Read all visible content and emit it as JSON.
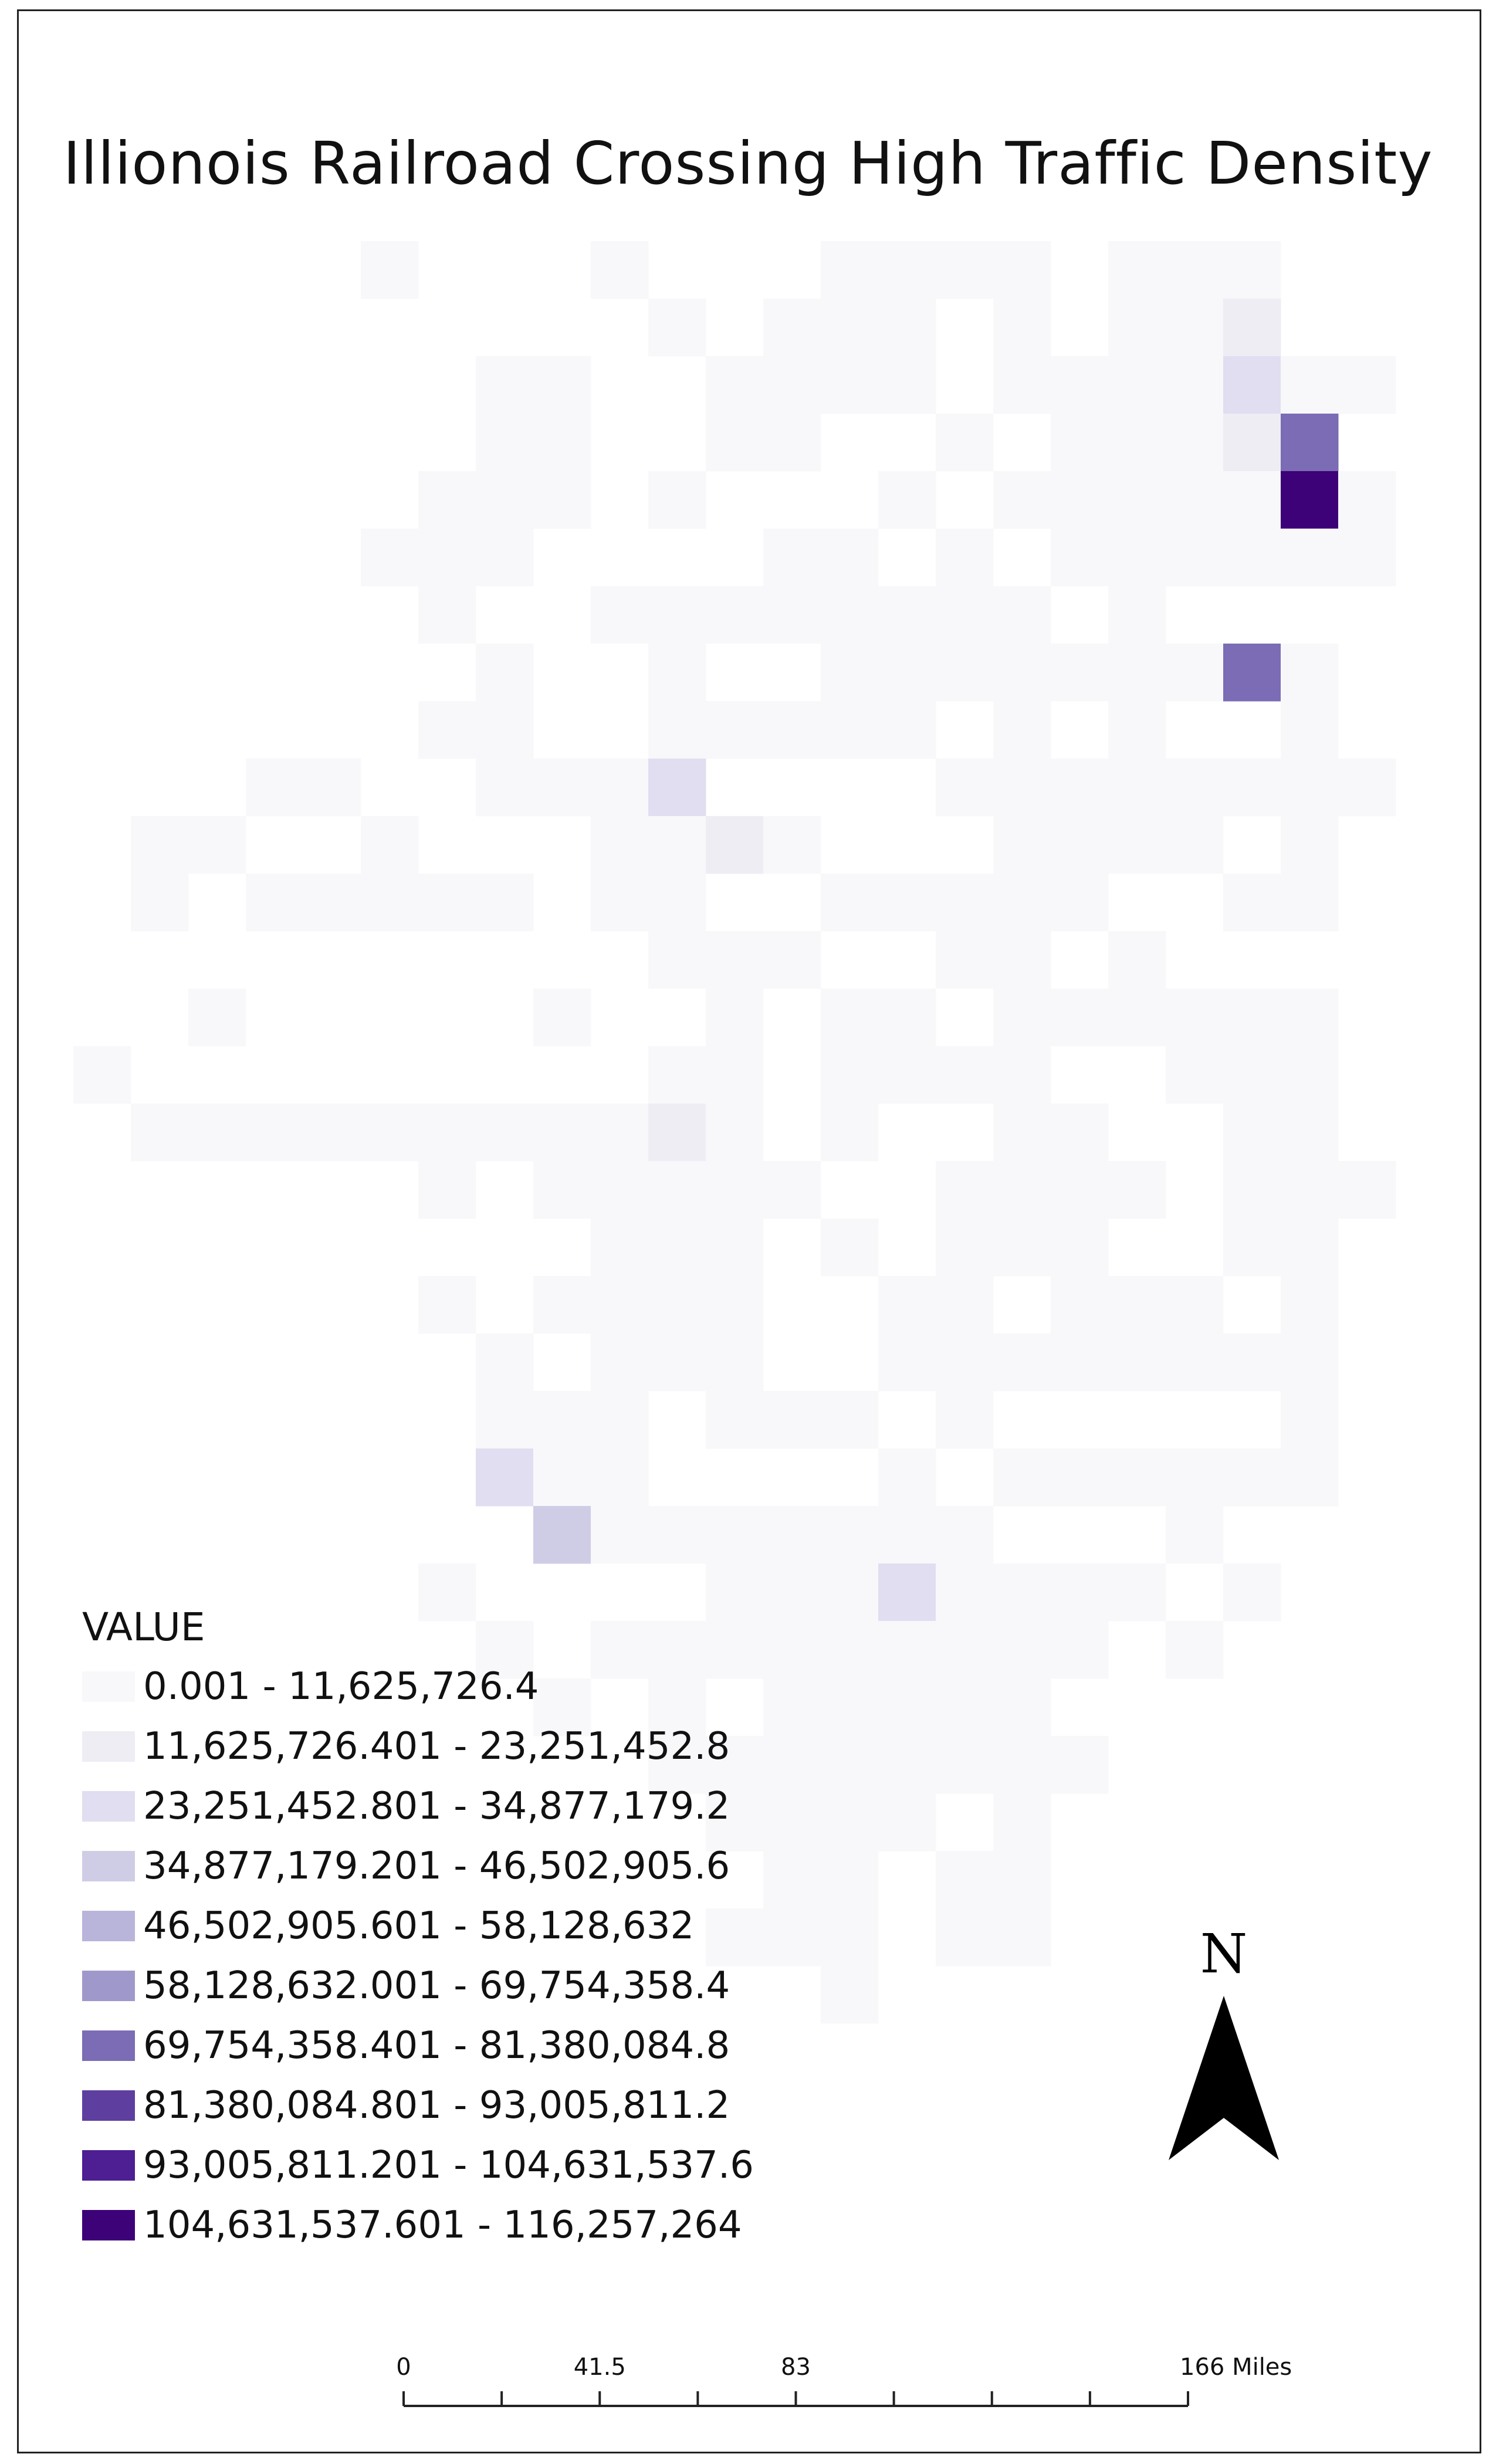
{
  "title": "Illionois Railroad Crossing High Traffic Density",
  "map": {
    "grid_cols": 23,
    "grid_rows": 31,
    "cells": [
      [
        5,
        0,
        0
      ],
      [
        9,
        0,
        0
      ],
      [
        13,
        0,
        0
      ],
      [
        14,
        0,
        0
      ],
      [
        15,
        0,
        0
      ],
      [
        16,
        0,
        0
      ],
      [
        18,
        0,
        0
      ],
      [
        19,
        0,
        0
      ],
      [
        20,
        0,
        0
      ],
      [
        10,
        1,
        0
      ],
      [
        12,
        1,
        0
      ],
      [
        13,
        1,
        0
      ],
      [
        14,
        1,
        0
      ],
      [
        16,
        1,
        0
      ],
      [
        18,
        1,
        0
      ],
      [
        19,
        1,
        0
      ],
      [
        20,
        1,
        1
      ],
      [
        7,
        2,
        0
      ],
      [
        8,
        2,
        0
      ],
      [
        11,
        2,
        0
      ],
      [
        12,
        2,
        0
      ],
      [
        13,
        2,
        0
      ],
      [
        14,
        2,
        0
      ],
      [
        16,
        2,
        0
      ],
      [
        17,
        2,
        0
      ],
      [
        18,
        2,
        0
      ],
      [
        19,
        2,
        0
      ],
      [
        20,
        2,
        2
      ],
      [
        21,
        2,
        0
      ],
      [
        22,
        2,
        0
      ],
      [
        7,
        3,
        0
      ],
      [
        8,
        3,
        0
      ],
      [
        11,
        3,
        0
      ],
      [
        12,
        3,
        0
      ],
      [
        15,
        3,
        0
      ],
      [
        17,
        3,
        0
      ],
      [
        18,
        3,
        0
      ],
      [
        19,
        3,
        0
      ],
      [
        20,
        3,
        1
      ],
      [
        21,
        3,
        6
      ],
      [
        6,
        4,
        0
      ],
      [
        7,
        4,
        0
      ],
      [
        8,
        4,
        0
      ],
      [
        10,
        4,
        0
      ],
      [
        14,
        4,
        0
      ],
      [
        16,
        4,
        0
      ],
      [
        17,
        4,
        0
      ],
      [
        18,
        4,
        0
      ],
      [
        19,
        4,
        0
      ],
      [
        20,
        4,
        0
      ],
      [
        21,
        4,
        9
      ],
      [
        22,
        4,
        0
      ],
      [
        5,
        5,
        0
      ],
      [
        6,
        5,
        0
      ],
      [
        7,
        5,
        0
      ],
      [
        12,
        5,
        0
      ],
      [
        13,
        5,
        0
      ],
      [
        15,
        5,
        0
      ],
      [
        17,
        5,
        0
      ],
      [
        18,
        5,
        0
      ],
      [
        19,
        5,
        0
      ],
      [
        20,
        5,
        0
      ],
      [
        21,
        5,
        0
      ],
      [
        22,
        5,
        0
      ],
      [
        6,
        6,
        0
      ],
      [
        9,
        6,
        0
      ],
      [
        10,
        6,
        0
      ],
      [
        11,
        6,
        0
      ],
      [
        12,
        6,
        0
      ],
      [
        13,
        6,
        0
      ],
      [
        14,
        6,
        0
      ],
      [
        15,
        6,
        0
      ],
      [
        16,
        6,
        0
      ],
      [
        18,
        6,
        0
      ],
      [
        7,
        7,
        0
      ],
      [
        10,
        7,
        0
      ],
      [
        13,
        7,
        0
      ],
      [
        14,
        7,
        0
      ],
      [
        15,
        7,
        0
      ],
      [
        16,
        7,
        0
      ],
      [
        17,
        7,
        0
      ],
      [
        18,
        7,
        0
      ],
      [
        19,
        7,
        0
      ],
      [
        20,
        7,
        6
      ],
      [
        21,
        7,
        0
      ],
      [
        6,
        8,
        0
      ],
      [
        7,
        8,
        0
      ],
      [
        10,
        8,
        0
      ],
      [
        11,
        8,
        0
      ],
      [
        12,
        8,
        0
      ],
      [
        13,
        8,
        0
      ],
      [
        14,
        8,
        0
      ],
      [
        16,
        8,
        0
      ],
      [
        18,
        8,
        0
      ],
      [
        21,
        8,
        0
      ],
      [
        3,
        9,
        0
      ],
      [
        4,
        9,
        0
      ],
      [
        7,
        9,
        0
      ],
      [
        8,
        9,
        0
      ],
      [
        9,
        9,
        0
      ],
      [
        10,
        9,
        2
      ],
      [
        15,
        9,
        0
      ],
      [
        16,
        9,
        0
      ],
      [
        17,
        9,
        0
      ],
      [
        18,
        9,
        0
      ],
      [
        19,
        9,
        0
      ],
      [
        20,
        9,
        0
      ],
      [
        21,
        9,
        0
      ],
      [
        22,
        9,
        0
      ],
      [
        1,
        10,
        0
      ],
      [
        2,
        10,
        0
      ],
      [
        5,
        10,
        0
      ],
      [
        9,
        10,
        0
      ],
      [
        10,
        10,
        0
      ],
      [
        11,
        10,
        1
      ],
      [
        12,
        10,
        0
      ],
      [
        16,
        10,
        0
      ],
      [
        17,
        10,
        0
      ],
      [
        18,
        10,
        0
      ],
      [
        19,
        10,
        0
      ],
      [
        21,
        10,
        0
      ],
      [
        1,
        11,
        0
      ],
      [
        3,
        11,
        0
      ],
      [
        4,
        11,
        0
      ],
      [
        5,
        11,
        0
      ],
      [
        6,
        11,
        0
      ],
      [
        7,
        11,
        0
      ],
      [
        9,
        11,
        0
      ],
      [
        10,
        11,
        0
      ],
      [
        13,
        11,
        0
      ],
      [
        14,
        11,
        0
      ],
      [
        15,
        11,
        0
      ],
      [
        16,
        11,
        0
      ],
      [
        17,
        11,
        0
      ],
      [
        20,
        11,
        0
      ],
      [
        21,
        11,
        0
      ],
      [
        10,
        12,
        0
      ],
      [
        11,
        12,
        0
      ],
      [
        12,
        12,
        0
      ],
      [
        15,
        12,
        0
      ],
      [
        16,
        12,
        0
      ],
      [
        18,
        12,
        0
      ],
      [
        2,
        13,
        0
      ],
      [
        8,
        13,
        0
      ],
      [
        11,
        13,
        0
      ],
      [
        13,
        13,
        0
      ],
      [
        14,
        13,
        0
      ],
      [
        16,
        13,
        0
      ],
      [
        17,
        13,
        0
      ],
      [
        18,
        13,
        0
      ],
      [
        19,
        13,
        0
      ],
      [
        20,
        13,
        0
      ],
      [
        21,
        13,
        0
      ],
      [
        0,
        14,
        0
      ],
      [
        10,
        14,
        0
      ],
      [
        11,
        14,
        0
      ],
      [
        13,
        14,
        0
      ],
      [
        14,
        14,
        0
      ],
      [
        15,
        14,
        0
      ],
      [
        16,
        14,
        0
      ],
      [
        19,
        14,
        0
      ],
      [
        20,
        14,
        0
      ],
      [
        21,
        14,
        0
      ],
      [
        1,
        15,
        0
      ],
      [
        2,
        15,
        0
      ],
      [
        3,
        15,
        0
      ],
      [
        4,
        15,
        0
      ],
      [
        5,
        15,
        0
      ],
      [
        6,
        15,
        0
      ],
      [
        7,
        15,
        0
      ],
      [
        8,
        15,
        0
      ],
      [
        9,
        15,
        0
      ],
      [
        10,
        15,
        1
      ],
      [
        11,
        15,
        0
      ],
      [
        13,
        15,
        0
      ],
      [
        16,
        15,
        0
      ],
      [
        17,
        15,
        0
      ],
      [
        20,
        15,
        0
      ],
      [
        21,
        15,
        0
      ],
      [
        6,
        16,
        0
      ],
      [
        8,
        16,
        0
      ],
      [
        9,
        16,
        0
      ],
      [
        10,
        16,
        0
      ],
      [
        11,
        16,
        0
      ],
      [
        12,
        16,
        0
      ],
      [
        15,
        16,
        0
      ],
      [
        16,
        16,
        0
      ],
      [
        17,
        16,
        0
      ],
      [
        18,
        16,
        0
      ],
      [
        20,
        16,
        0
      ],
      [
        21,
        16,
        0
      ],
      [
        22,
        16,
        0
      ],
      [
        9,
        17,
        0
      ],
      [
        10,
        17,
        0
      ],
      [
        11,
        17,
        0
      ],
      [
        13,
        17,
        0
      ],
      [
        15,
        17,
        0
      ],
      [
        16,
        17,
        0
      ],
      [
        17,
        17,
        0
      ],
      [
        20,
        17,
        0
      ],
      [
        21,
        17,
        0
      ],
      [
        6,
        18,
        0
      ],
      [
        8,
        18,
        0
      ],
      [
        9,
        18,
        0
      ],
      [
        10,
        18,
        0
      ],
      [
        11,
        18,
        0
      ],
      [
        14,
        18,
        0
      ],
      [
        15,
        18,
        0
      ],
      [
        17,
        18,
        0
      ],
      [
        18,
        18,
        0
      ],
      [
        19,
        18,
        0
      ],
      [
        21,
        18,
        0
      ],
      [
        7,
        19,
        0
      ],
      [
        9,
        19,
        0
      ],
      [
        10,
        19,
        0
      ],
      [
        11,
        19,
        0
      ],
      [
        14,
        19,
        0
      ],
      [
        15,
        19,
        0
      ],
      [
        16,
        19,
        0
      ],
      [
        17,
        19,
        0
      ],
      [
        18,
        19,
        0
      ],
      [
        19,
        19,
        0
      ],
      [
        20,
        19,
        0
      ],
      [
        21,
        19,
        0
      ],
      [
        7,
        20,
        0
      ],
      [
        8,
        20,
        0
      ],
      [
        9,
        20,
        0
      ],
      [
        11,
        20,
        0
      ],
      [
        12,
        20,
        0
      ],
      [
        13,
        20,
        0
      ],
      [
        15,
        20,
        0
      ],
      [
        21,
        20,
        0
      ],
      [
        7,
        21,
        2
      ],
      [
        8,
        21,
        0
      ],
      [
        9,
        21,
        0
      ],
      [
        14,
        21,
        0
      ],
      [
        16,
        21,
        0
      ],
      [
        17,
        21,
        0
      ],
      [
        18,
        21,
        0
      ],
      [
        19,
        21,
        0
      ],
      [
        20,
        21,
        0
      ],
      [
        21,
        21,
        0
      ],
      [
        8,
        22,
        3
      ],
      [
        9,
        22,
        0
      ],
      [
        10,
        22,
        0
      ],
      [
        11,
        22,
        0
      ],
      [
        12,
        22,
        0
      ],
      [
        13,
        22,
        0
      ],
      [
        14,
        22,
        0
      ],
      [
        15,
        22,
        0
      ],
      [
        19,
        22,
        0
      ],
      [
        6,
        23,
        0
      ],
      [
        11,
        23,
        0
      ],
      [
        12,
        23,
        0
      ],
      [
        13,
        23,
        0
      ],
      [
        14,
        23,
        2
      ],
      [
        15,
        23,
        0
      ],
      [
        16,
        23,
        0
      ],
      [
        17,
        23,
        0
      ],
      [
        18,
        23,
        0
      ],
      [
        20,
        23,
        0
      ],
      [
        7,
        24,
        0
      ],
      [
        9,
        24,
        0
      ],
      [
        10,
        24,
        0
      ],
      [
        11,
        24,
        0
      ],
      [
        12,
        24,
        0
      ],
      [
        13,
        24,
        0
      ],
      [
        14,
        24,
        0
      ],
      [
        15,
        24,
        0
      ],
      [
        16,
        24,
        0
      ],
      [
        17,
        24,
        0
      ],
      [
        19,
        24,
        0
      ],
      [
        8,
        25,
        0
      ],
      [
        10,
        25,
        0
      ],
      [
        12,
        25,
        0
      ],
      [
        13,
        25,
        0
      ],
      [
        14,
        25,
        0
      ],
      [
        15,
        25,
        0
      ],
      [
        16,
        25,
        0
      ],
      [
        10,
        26,
        0
      ],
      [
        11,
        26,
        0
      ],
      [
        12,
        26,
        0
      ],
      [
        13,
        26,
        0
      ],
      [
        14,
        26,
        0
      ],
      [
        15,
        26,
        0
      ],
      [
        16,
        26,
        0
      ],
      [
        17,
        26,
        0
      ],
      [
        11,
        27,
        0
      ],
      [
        12,
        27,
        0
      ],
      [
        13,
        27,
        0
      ],
      [
        14,
        27,
        0
      ],
      [
        16,
        27,
        0
      ],
      [
        12,
        28,
        0
      ],
      [
        13,
        28,
        0
      ],
      [
        15,
        28,
        0
      ],
      [
        16,
        28,
        0
      ],
      [
        11,
        29,
        0
      ],
      [
        12,
        29,
        0
      ],
      [
        13,
        29,
        0
      ],
      [
        15,
        29,
        0
      ],
      [
        16,
        29,
        0
      ],
      [
        13,
        30,
        0
      ]
    ]
  },
  "legend": {
    "title": "VALUE",
    "classes": [
      {
        "label": "0.001 - 11,625,726.4",
        "color": "#f8f8fb"
      },
      {
        "label": "11,625,726.401 - 23,251,452.8",
        "color": "#eeedf4"
      },
      {
        "label": "23,251,452.801 - 34,877,179.2",
        "color": "#e0def0"
      },
      {
        "label": "34,877,179.201 - 46,502,905.6",
        "color": "#cfcce6"
      },
      {
        "label": "46,502,905.601 - 58,128,632",
        "color": "#b8b4da"
      },
      {
        "label": "58,128,632.001 - 69,754,358.4",
        "color": "#9f99cb"
      },
      {
        "label": "69,754,358.401 - 81,380,084.8",
        "color": "#7b6cb5"
      },
      {
        "label": "81,380,084.801 - 93,005,811.2",
        "color": "#5e3fa0"
      },
      {
        "label": "93,005,811.201 - 104,631,537.6",
        "color": "#4e1e93"
      },
      {
        "label": "104,631,537.601 - 116,257,264",
        "color": "#3d0277"
      }
    ]
  },
  "north_arrow": {
    "label": "N"
  },
  "scale_bar": {
    "labels": [
      "0",
      "41.5",
      "83",
      "166 Miles"
    ],
    "values": [
      0,
      41.5,
      83,
      166
    ],
    "max": 166,
    "divisions": 8
  }
}
